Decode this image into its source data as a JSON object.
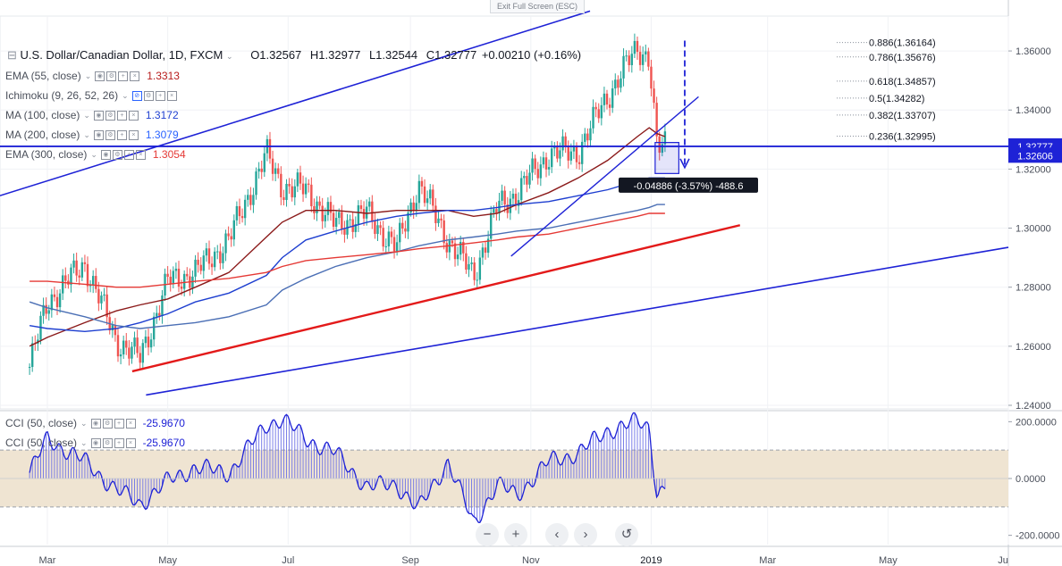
{
  "toolbar": {
    "exit_fullscreen": "Exit Full Screen (ESC)"
  },
  "header": {
    "symbol": "U.S. Dollar/Canadian Dollar, 1D, FXCM",
    "open": "O1.32567",
    "high": "H1.32977",
    "low": "L1.32544",
    "close": "C1.32777",
    "change": "+0.00210 (+0.16%)"
  },
  "indicators": [
    {
      "label": "EMA (55, close)",
      "value": "1.3313",
      "color": "#b71c1c"
    },
    {
      "label": "Ichimoku (9, 26, 52, 26)",
      "value": "",
      "color": "#2962ff"
    },
    {
      "label": "MA (100, close)",
      "value": "1.3172",
      "color": "#1e3fd0"
    },
    {
      "label": "MA (200, close)",
      "value": "1.3079",
      "color": "#2962ff"
    },
    {
      "label": "EMA (300, close)",
      "value": "1.3054",
      "color": "#e53935"
    }
  ],
  "cci_legend": [
    {
      "label": "CCI (50, close)",
      "value": "-25.9670",
      "color": "#1e22d6"
    },
    {
      "label": "CCI (50, close)",
      "value": "-25.9670",
      "color": "#1e22d6"
    }
  ],
  "price_axis": {
    "ticks": [
      "1.36000",
      "1.34000",
      "1.32000",
      "1.30000",
      "1.28000",
      "1.26000",
      "1.24000"
    ]
  },
  "cci_axis": {
    "ticks": [
      "200.0000",
      "0.0000",
      "-200.0000"
    ]
  },
  "time_axis": {
    "ticks": [
      "Mar",
      "May",
      "Jul",
      "Sep",
      "Nov",
      "2019",
      "Mar",
      "May",
      "Ju"
    ]
  },
  "price_badges": [
    {
      "value": "1.32777",
      "color": "#1e22d6"
    },
    {
      "value": "1.32606",
      "color": "#1e22d6"
    }
  ],
  "fibonacci": [
    {
      "label": "0.886(1.36164)",
      "price": 1.36164
    },
    {
      "label": "0.786(1.35676)",
      "price": 1.35676
    },
    {
      "label": "0.618(1.34857)",
      "price": 1.34857
    },
    {
      "label": "0.5(1.34282)",
      "price": 1.34282
    },
    {
      "label": "0.382(1.33707)",
      "price": 1.33707
    },
    {
      "label": "0.236(1.32995)",
      "price": 1.32995
    }
  ],
  "measure_label": "-0.04886 (-3.57%) -488.6",
  "colors": {
    "candle_up": "#26a69a",
    "candle_down": "#ef5350",
    "trend_blue": "#1e22d6",
    "trend_red": "#e31a1a",
    "ema55": "#8b1a1a",
    "ma100": "#1e3fd0",
    "ma200": "#4b6fb5",
    "ema300": "#e53935",
    "cci_band": "#efe4d2",
    "cci_line": "#1e22d6"
  },
  "zoom_controls": [
    "−",
    "+",
    "‹",
    "›",
    "↺"
  ],
  "chart_data": {
    "type": "line",
    "x": [
      "2018-02-20",
      "2018-03-01",
      "2018-03-20",
      "2018-04-05",
      "2018-04-17",
      "2018-05-01",
      "2018-05-15",
      "2018-06-01",
      "2018-06-20",
      "2018-06-28",
      "2018-07-10",
      "2018-07-25",
      "2018-08-10",
      "2018-08-25",
      "2018-09-05",
      "2018-09-20",
      "2018-10-03",
      "2018-10-15",
      "2018-10-25",
      "2018-11-10",
      "2018-11-25",
      "2018-12-10",
      "2018-12-25",
      "2018-12-31",
      "2019-01-04",
      "2019-01-08"
    ],
    "series": [
      {
        "name": "U.S. Dollar/Canadian Dollar",
        "values": [
          1.253,
          1.275,
          1.288,
          1.262,
          1.256,
          1.282,
          1.285,
          1.296,
          1.325,
          1.314,
          1.313,
          1.301,
          1.305,
          1.293,
          1.315,
          1.296,
          1.284,
          1.307,
          1.312,
          1.325,
          1.326,
          1.345,
          1.361,
          1.358,
          1.326,
          1.328
        ]
      },
      {
        "name": "EMA (55, close)",
        "values": [
          1.26,
          1.263,
          1.268,
          1.272,
          1.274,
          1.276,
          1.28,
          1.285,
          1.297,
          1.302,
          1.306,
          1.306,
          1.305,
          1.306,
          1.306,
          1.306,
          1.304,
          1.305,
          1.308,
          1.312,
          1.317,
          1.323,
          1.331,
          1.334,
          1.332,
          1.331
        ]
      },
      {
        "name": "MA (100, close)",
        "values": [
          1.267,
          1.266,
          1.265,
          1.266,
          1.268,
          1.271,
          1.275,
          1.278,
          1.284,
          1.29,
          1.296,
          1.299,
          1.302,
          1.304,
          1.305,
          1.306,
          1.306,
          1.307,
          1.308,
          1.309,
          1.311,
          1.313,
          1.316,
          1.317,
          1.317,
          1.317
        ]
      },
      {
        "name": "MA (200, close)",
        "values": [
          1.275,
          1.273,
          1.27,
          1.267,
          1.266,
          1.267,
          1.268,
          1.27,
          1.274,
          1.279,
          1.283,
          1.287,
          1.29,
          1.292,
          1.294,
          1.296,
          1.297,
          1.298,
          1.299,
          1.3,
          1.302,
          1.304,
          1.306,
          1.307,
          1.308,
          1.308
        ]
      },
      {
        "name": "EMA (300, close)",
        "values": [
          1.282,
          1.282,
          1.281,
          1.28,
          1.28,
          1.281,
          1.282,
          1.283,
          1.285,
          1.287,
          1.289,
          1.29,
          1.291,
          1.292,
          1.293,
          1.294,
          1.295,
          1.296,
          1.297,
          1.298,
          1.3,
          1.302,
          1.304,
          1.305,
          1.305,
          1.305
        ]
      }
    ],
    "cci": {
      "name": "CCI (50, close)",
      "values": [
        20,
        140,
        60,
        -40,
        -90,
        -10,
        40,
        20,
        190,
        210,
        140,
        90,
        -30,
        -20,
        -110,
        60,
        -160,
        -20,
        -60,
        60,
        90,
        170,
        200,
        180,
        -60,
        -26
      ]
    },
    "ylim": [
      1.24,
      1.37
    ],
    "cci_ylim": [
      -220,
      220
    ],
    "grid": true,
    "legend": "top-left"
  }
}
